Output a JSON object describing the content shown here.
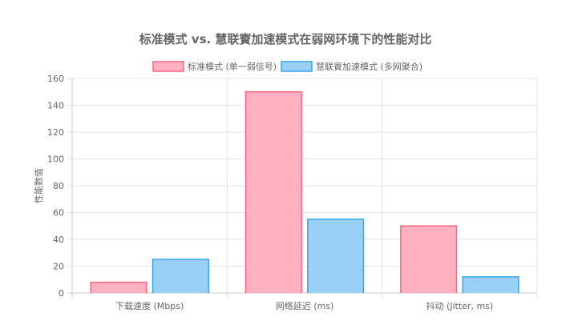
{
  "chart_data": {
    "type": "bar",
    "title": "标准模式 vs. 慧联賨加速模式在弱网环境下的性能对比",
    "categories": [
      "下载速度 (Mbps)",
      "网络延迟 (ms)",
      "抖动 (Jitter, ms)"
    ],
    "series": [
      {
        "name": "标准模式 (单一弱信号)",
        "values": [
          8,
          150,
          50
        ],
        "fill": "#ffb1c1",
        "stroke": "#ff6384"
      },
      {
        "name": "慧联賨加速模式 (多网聚合)",
        "values": [
          25,
          55,
          12
        ],
        "fill": "#9ad0f5",
        "stroke": "#36a2eb"
      }
    ],
    "xlabel": "",
    "ylabel": "性能数值",
    "ylim": [
      0,
      160
    ],
    "yticks": [
      0,
      20,
      40,
      60,
      80,
      100,
      120,
      140,
      160
    ],
    "grid": true,
    "legend_position": "top"
  }
}
